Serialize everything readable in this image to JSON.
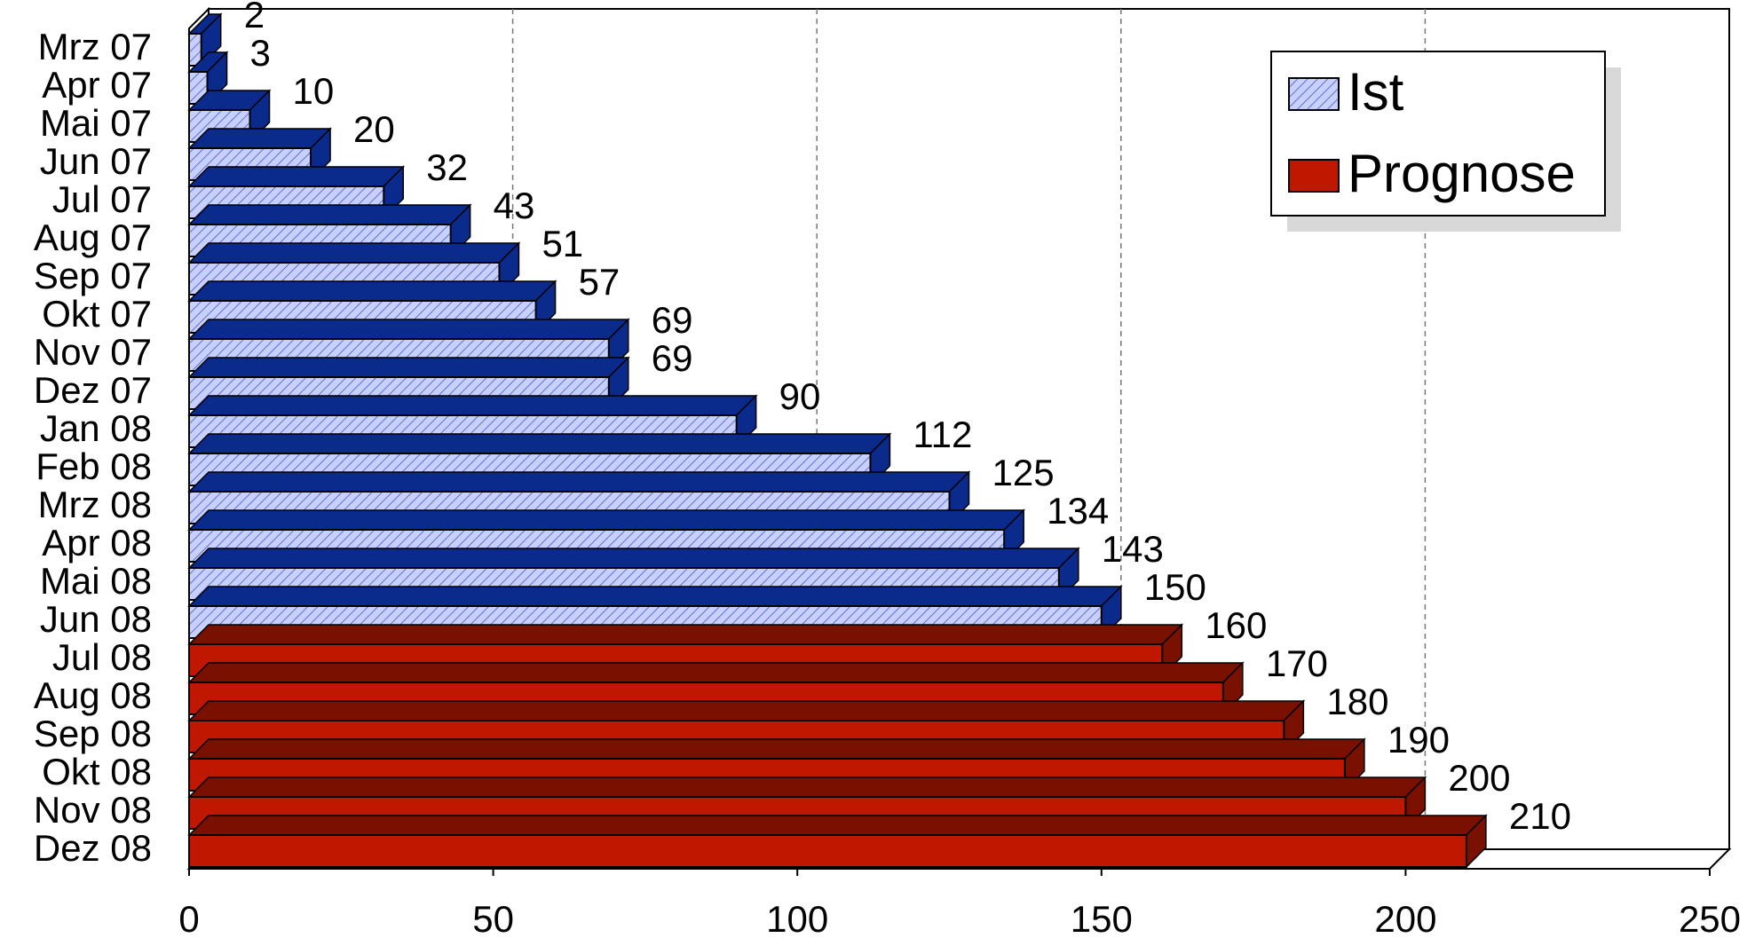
{
  "chart_data": {
    "type": "bar3d-horizontal",
    "categories": [
      "Mrz 07",
      "Apr 07",
      "Mai 07",
      "Jun 07",
      "Jul 07",
      "Aug 07",
      "Sep 07",
      "Okt 07",
      "Nov 07",
      "Dez 07",
      "Jan 08",
      "Feb 08",
      "Mrz 08",
      "Apr 08",
      "Mai 08",
      "Jun 08",
      "Jul 08",
      "Aug 08",
      "Sep 08",
      "Okt 08",
      "Nov 08",
      "Dez 08"
    ],
    "series": [
      {
        "name": "Ist",
        "color": "#c8d0ff",
        "values": [
          2,
          3,
          10,
          20,
          32,
          43,
          51,
          57,
          69,
          69,
          90,
          112,
          125,
          134,
          143,
          150,
          null,
          null,
          null,
          null,
          null,
          null
        ]
      },
      {
        "name": "Prognose",
        "color": "#c01800",
        "values": [
          null,
          null,
          null,
          null,
          null,
          null,
          null,
          null,
          null,
          null,
          null,
          null,
          null,
          null,
          null,
          null,
          160,
          170,
          180,
          190,
          200,
          210
        ]
      }
    ],
    "xlim": [
      0,
      250
    ],
    "xticks": [
      0,
      50,
      100,
      150,
      200,
      250
    ],
    "grid": true,
    "legend": "top-right"
  }
}
